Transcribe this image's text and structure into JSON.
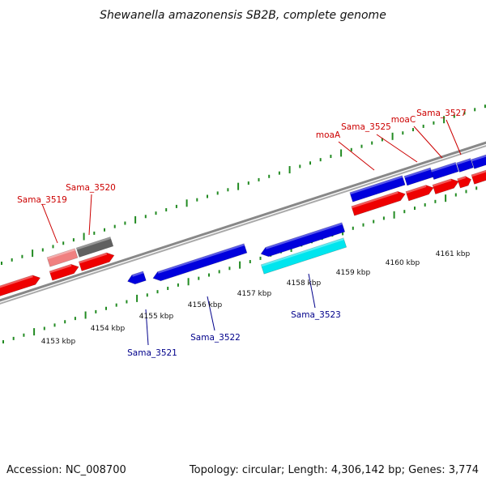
{
  "title": "Shewanella amazonensis SB2B, complete genome",
  "footer": {
    "accession": "Accession: NC_008700",
    "summary": "Topology: circular; Length: 4,306,142 bp; Genes: 3,774"
  },
  "colors": {
    "label_top": "#cc0000",
    "label_bottom": "#00008b",
    "tick": "#228b22",
    "backbone": "#888888",
    "forward_gene": "#ee0000",
    "reverse_gene": "#0000dd",
    "pink_gene": "#f08080",
    "grey_gene": "#606060",
    "cyan_gene": "#00e5ee"
  },
  "scale_labels": [
    "4153 kbp",
    "4154 kbp",
    "4155 kbp",
    "4156 kbp",
    "4157 kbp",
    "4158 kbp",
    "4159 kbp",
    "4160 kbp",
    "4161 kbp"
  ],
  "gene_labels_top": [
    "Sama_3519",
    "Sama_3520",
    "moaA",
    "Sama_3525",
    "moaC",
    "Sama_3527"
  ],
  "gene_labels_bottom": [
    "Sama_3521",
    "Sama_3522",
    "Sama_3523"
  ],
  "icons": {
    "forward_gene": "red-arrow-block",
    "reverse_gene": "blue-arrow-block"
  }
}
